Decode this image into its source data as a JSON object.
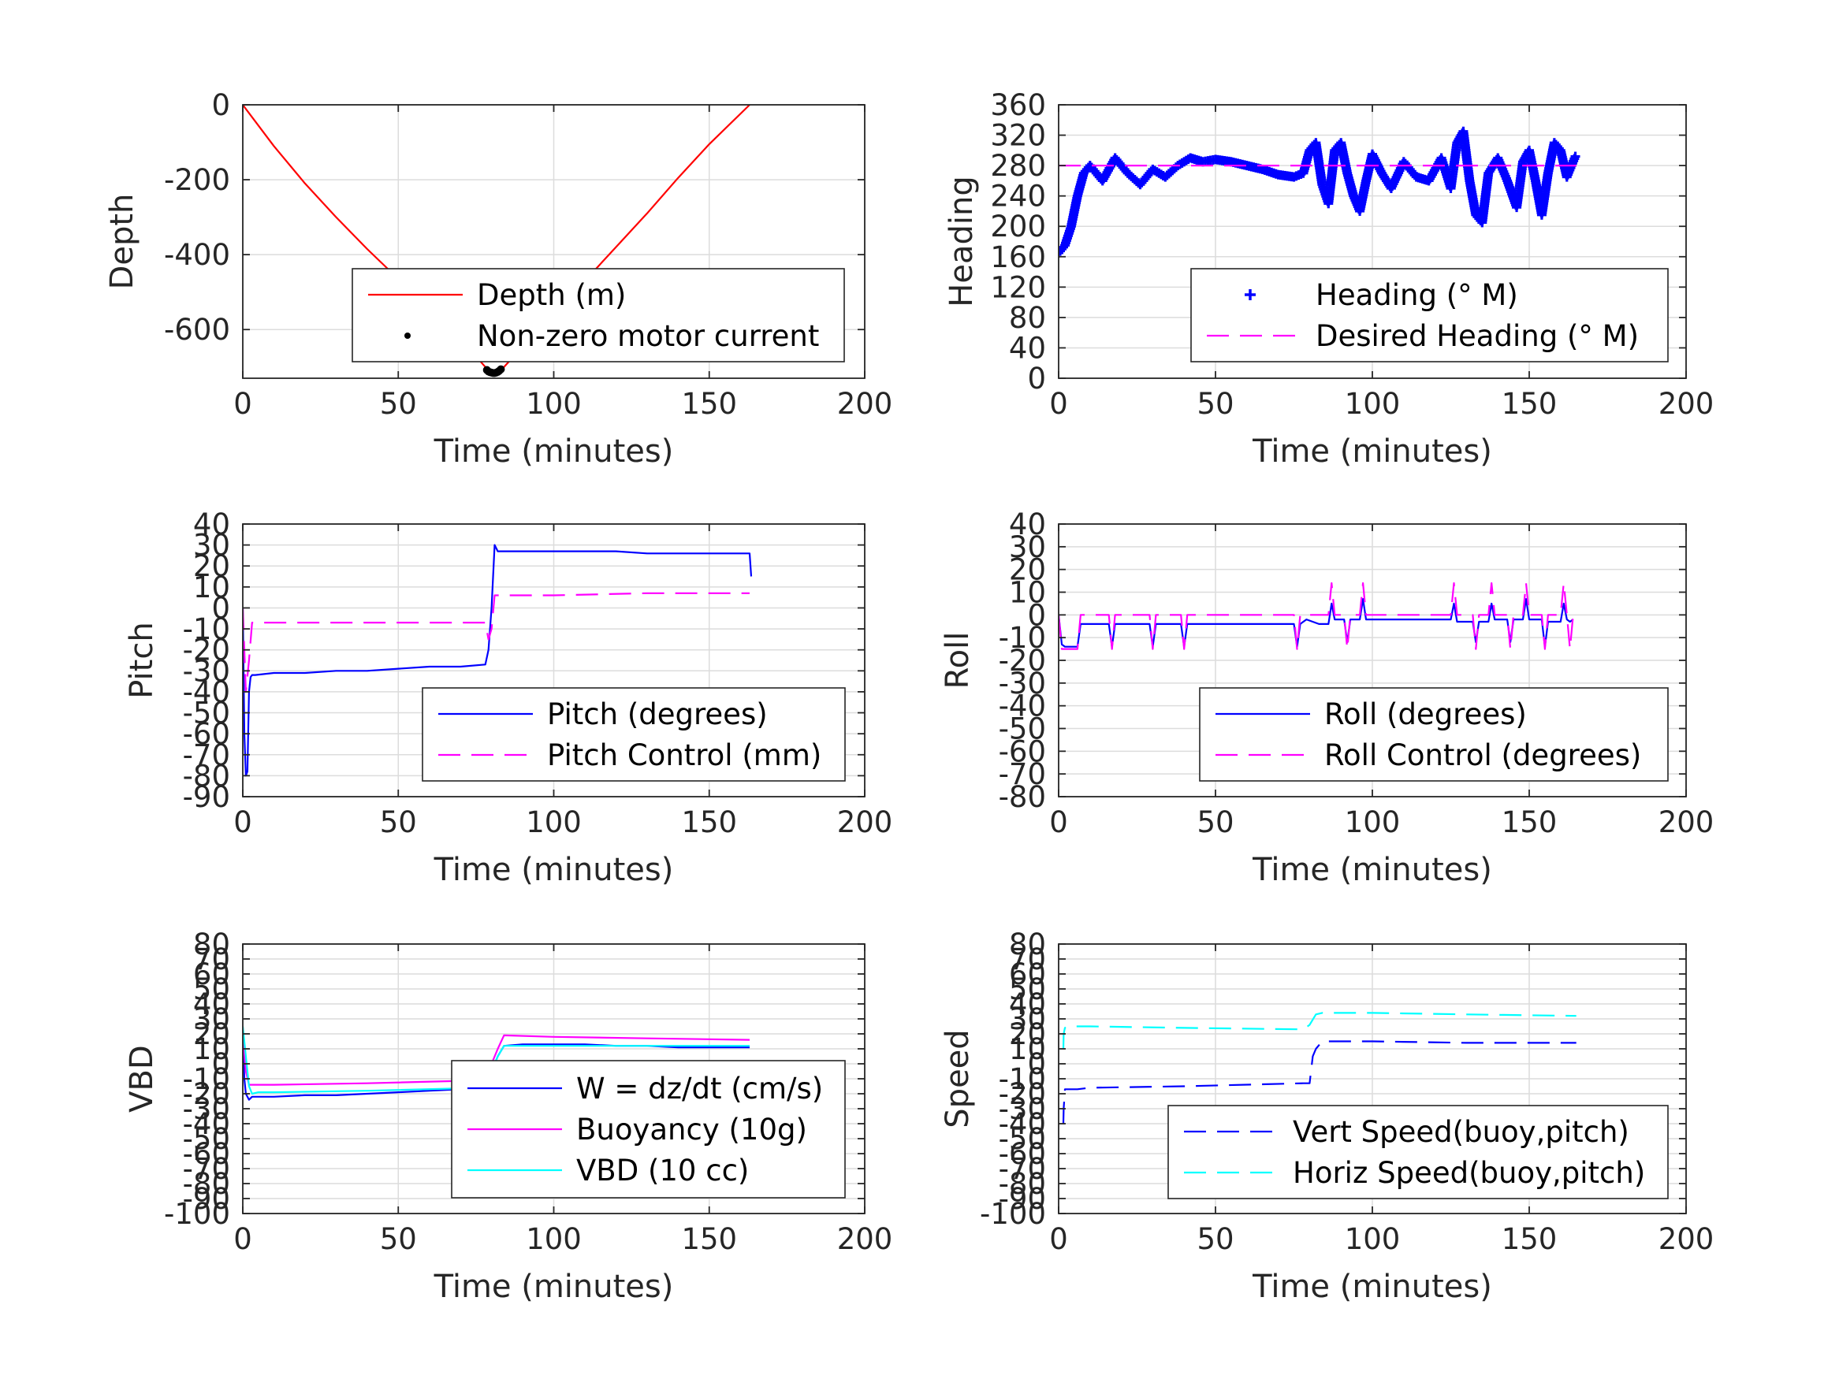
{
  "chart_data": [
    {
      "id": "depth",
      "type": "line",
      "xlabel": "Time (minutes)",
      "ylabel": "Depth",
      "xlim": [
        0,
        200
      ],
      "ylim": [
        -730,
        0
      ],
      "xticks": [
        0,
        50,
        100,
        150,
        200
      ],
      "yticks": [
        0,
        -200,
        -400,
        -600
      ],
      "legend": "bottom-right",
      "grid": true,
      "series": [
        {
          "name": "Depth (m)",
          "style": "solid",
          "color": "#ff0000",
          "x": [
            0,
            10,
            20,
            30,
            40,
            50,
            60,
            70,
            78,
            80,
            82,
            84,
            90,
            100,
            110,
            120,
            130,
            140,
            150,
            163
          ],
          "y": [
            0,
            -110,
            -210,
            -300,
            -385,
            -465,
            -545,
            -625,
            -700,
            -715,
            -715,
            -700,
            -645,
            -560,
            -470,
            -380,
            -290,
            -195,
            -105,
            0
          ]
        },
        {
          "name": "Non-zero motor current",
          "style": "marker",
          "color": "#000000",
          "x": [
            78.5,
            79,
            79.5,
            80,
            80.5,
            81,
            81.5,
            82,
            82.5,
            83
          ],
          "y": [
            -708,
            -712,
            -714,
            -715,
            -716,
            -716,
            -715,
            -713,
            -710,
            -706
          ]
        }
      ]
    },
    {
      "id": "heading",
      "type": "line",
      "xlabel": "Time (minutes)",
      "ylabel": "Heading",
      "xlim": [
        0,
        200
      ],
      "ylim": [
        0,
        360
      ],
      "xticks": [
        0,
        50,
        100,
        150,
        200
      ],
      "yticks": [
        0,
        40,
        80,
        120,
        160,
        200,
        240,
        280,
        320,
        360
      ],
      "legend": "bottom-right",
      "grid": true,
      "series": [
        {
          "name": "Heading (° M)",
          "style": "plus",
          "color": "#0000ff",
          "x": [
            0,
            2,
            4,
            6,
            8,
            10,
            14,
            18,
            22,
            26,
            30,
            34,
            38,
            42,
            46,
            50,
            55,
            60,
            65,
            70,
            75,
            78,
            80,
            82,
            84,
            86,
            88,
            90,
            92,
            94,
            96,
            98,
            100,
            103,
            106,
            110,
            114,
            118,
            122,
            125,
            127,
            129,
            131,
            133,
            135,
            137,
            140,
            143,
            146,
            148,
            150,
            152,
            154,
            156,
            158,
            160,
            162,
            165
          ],
          "y": [
            165,
            175,
            200,
            240,
            270,
            280,
            260,
            290,
            270,
            255,
            275,
            265,
            280,
            290,
            285,
            288,
            285,
            280,
            275,
            268,
            265,
            270,
            300,
            310,
            255,
            230,
            300,
            310,
            270,
            240,
            220,
            260,
            295,
            270,
            250,
            285,
            265,
            260,
            290,
            250,
            310,
            325,
            260,
            215,
            205,
            270,
            290,
            260,
            225,
            285,
            300,
            260,
            215,
            270,
            310,
            300,
            265,
            295
          ]
        },
        {
          "name": "Desired Heading (° M)",
          "style": "dashed",
          "color": "#ff00ff",
          "x": [
            0,
            165
          ],
          "y": [
            280,
            280
          ]
        }
      ]
    },
    {
      "id": "pitch",
      "type": "line",
      "xlabel": "Time (minutes)",
      "ylabel": "Pitch",
      "xlim": [
        0,
        200
      ],
      "ylim": [
        -90,
        40
      ],
      "xticks": [
        0,
        50,
        100,
        150,
        200
      ],
      "yticks": [
        40,
        30,
        20,
        10,
        0,
        -10,
        -20,
        -30,
        -40,
        -50,
        -60,
        -70,
        -80,
        -90
      ],
      "legend": "bottom-right",
      "grid": true,
      "series": [
        {
          "name": "Pitch (degrees)",
          "style": "solid",
          "color": "#0000ff",
          "x": [
            0,
            0.5,
            1,
            1.5,
            2,
            2.5,
            3,
            4,
            10,
            20,
            30,
            40,
            50,
            60,
            70,
            78,
            79,
            80,
            81,
            82,
            90,
            100,
            110,
            120,
            130,
            140,
            150,
            160,
            163,
            163.5
          ],
          "y": [
            0,
            -60,
            -80,
            -78,
            -40,
            -33,
            -32,
            -32,
            -31,
            -31,
            -30,
            -30,
            -29,
            -28,
            -28,
            -27,
            -20,
            0,
            30,
            27,
            27,
            27,
            27,
            27,
            26,
            26,
            26,
            26,
            26,
            15
          ]
        },
        {
          "name": "Pitch Control (mm)",
          "style": "dashed",
          "color": "#ff00ff",
          "x": [
            0,
            1,
            2,
            3,
            10,
            40,
            78,
            79,
            80,
            81,
            82,
            100,
            130,
            163
          ],
          "y": [
            0,
            -40,
            -25,
            -7,
            -7,
            -7,
            -7,
            -15,
            -10,
            6,
            6,
            6,
            7,
            7
          ]
        }
      ]
    },
    {
      "id": "roll",
      "type": "line",
      "xlabel": "Time (minutes)",
      "ylabel": "Roll",
      "xlim": [
        0,
        200
      ],
      "ylim": [
        -80,
        40
      ],
      "xticks": [
        0,
        50,
        100,
        150,
        200
      ],
      "yticks": [
        40,
        30,
        20,
        10,
        0,
        -10,
        -20,
        -30,
        -40,
        -50,
        -60,
        -70,
        -80
      ],
      "legend": "bottom-right",
      "grid": true,
      "series": [
        {
          "name": "Roll (degrees)",
          "style": "solid",
          "color": "#0000ff",
          "x": [
            0,
            1,
            2,
            6,
            7,
            8,
            16,
            17,
            18,
            29,
            30,
            31,
            39,
            40,
            41,
            75,
            76,
            77,
            79,
            83,
            86,
            87,
            88,
            91,
            92,
            93,
            96,
            97,
            98,
            125,
            126,
            127,
            132,
            133,
            134,
            137,
            138,
            139,
            143,
            144,
            145,
            148,
            149,
            150,
            154,
            155,
            156,
            160,
            161,
            162,
            163,
            164
          ],
          "y": [
            0,
            -13,
            -14,
            -14,
            -4,
            -4,
            -4,
            -14,
            -4,
            -4,
            -14,
            -4,
            -4,
            -14,
            -4,
            -4,
            -14,
            -4,
            -2,
            -4,
            -4,
            5,
            -2,
            -2,
            -12,
            -2,
            -2,
            7,
            -2,
            -2,
            5,
            -3,
            -3,
            -12,
            -3,
            -3,
            5,
            -2,
            -2,
            -12,
            -2,
            -2,
            7,
            -2,
            -2,
            -14,
            -3,
            -3,
            5,
            -2,
            -3,
            -2
          ]
        },
        {
          "name": "Roll Control (degrees)",
          "style": "dashed",
          "color": "#ff00ff",
          "x": [
            0,
            1,
            2,
            6,
            7,
            8,
            16,
            17,
            18,
            29,
            30,
            31,
            39,
            40,
            41,
            75,
            76,
            77,
            86,
            87,
            88,
            91,
            92,
            93,
            96,
            97,
            98,
            125,
            126,
            127,
            132,
            133,
            134,
            137,
            138,
            139,
            143,
            144,
            145,
            148,
            149,
            150,
            154,
            155,
            156,
            160,
            161,
            162,
            163,
            164
          ],
          "y": [
            0,
            -15,
            -15,
            -15,
            0,
            0,
            0,
            -15,
            0,
            0,
            -15,
            0,
            0,
            -15,
            0,
            0,
            -15,
            0,
            0,
            14,
            0,
            0,
            -15,
            0,
            0,
            14,
            0,
            0,
            14,
            0,
            0,
            -15,
            0,
            0,
            14,
            0,
            0,
            -15,
            0,
            0,
            14,
            0,
            0,
            -15,
            0,
            0,
            14,
            0,
            -15,
            0
          ]
        }
      ]
    },
    {
      "id": "vbd",
      "type": "line",
      "xlabel": "Time (minutes)",
      "ylabel": "VBD",
      "xlim": [
        0,
        200
      ],
      "ylim": [
        -100,
        80
      ],
      "xticks": [
        0,
        50,
        100,
        150,
        200
      ],
      "yticks": [
        80,
        70,
        60,
        50,
        40,
        30,
        20,
        10,
        0,
        -10,
        -20,
        -30,
        -40,
        -50,
        -60,
        -70,
        -80,
        -90,
        -100
      ],
      "ytick_labels": [
        "80",
        "70",
        "60",
        "50",
        "40",
        "30",
        "20",
        "10",
        "0",
        "-10",
        "-20",
        "-30",
        "-40",
        "-50",
        "-60",
        "-70",
        "-80",
        "-90",
        "-100"
      ],
      "legend": "bottom-right",
      "grid": true,
      "series": [
        {
          "name": "W = dz/dt (cm/s)",
          "style": "solid",
          "color": "#0000ff",
          "x": [
            0,
            0.5,
            1,
            2,
            3,
            5,
            10,
            20,
            30,
            40,
            50,
            60,
            70,
            78,
            80,
            82,
            84,
            90,
            100,
            110,
            120,
            130,
            140,
            150,
            160,
            163
          ],
          "y": [
            20,
            -10,
            -20,
            -24,
            -22,
            -22,
            -22,
            -21,
            -21,
            -20,
            -19,
            -18,
            -17,
            -16,
            -5,
            5,
            12,
            13,
            13,
            13,
            12,
            12,
            11,
            11,
            11,
            11
          ]
        },
        {
          "name": "Buoyancy (10g)",
          "style": "solid",
          "color": "#ff00ff",
          "x": [
            0,
            1,
            2,
            3,
            10,
            40,
            78,
            80,
            82,
            84,
            100,
            130,
            163
          ],
          "y": [
            20,
            -5,
            -14,
            -14,
            -14,
            -13,
            -11,
            0,
            10,
            19,
            18,
            17,
            16
          ]
        },
        {
          "name": "VBD (10 cc)",
          "style": "solid",
          "color": "#00ffff",
          "x": [
            0,
            1,
            2,
            3,
            5,
            10,
            40,
            78,
            80,
            82,
            84,
            100,
            130,
            163
          ],
          "y": [
            25,
            5,
            -15,
            -20,
            -19,
            -19,
            -18,
            -16,
            -5,
            5,
            12,
            12,
            12,
            12
          ]
        }
      ]
    },
    {
      "id": "speed",
      "type": "line",
      "xlabel": "Time (minutes)",
      "ylabel": "Speed",
      "xlim": [
        0,
        200
      ],
      "ylim": [
        -100,
        80
      ],
      "xticks": [
        0,
        50,
        100,
        150,
        200
      ],
      "yticks": [
        80,
        70,
        60,
        50,
        40,
        30,
        20,
        10,
        0,
        -10,
        -20,
        -30,
        -40,
        -50,
        -60,
        -70,
        -80,
        -90,
        -100
      ],
      "ytick_labels": [
        "80",
        "70",
        "60",
        "50",
        "40",
        "30",
        "20",
        "10",
        "0",
        "-10",
        "-20",
        "-30",
        "-40",
        "-50",
        "-60",
        "-70",
        "-80",
        "-90",
        "-100"
      ],
      "legend": "bottom-right",
      "grid": true,
      "series": [
        {
          "name": "Vert Speed(buoy,pitch)",
          "style": "dashed",
          "color": "#0000ff",
          "x": [
            1.5,
            1.6,
            2,
            6,
            10,
            40,
            78,
            80,
            81,
            82,
            84,
            100,
            130,
            165
          ],
          "y": [
            -40,
            -30,
            -17,
            -17,
            -16,
            -15,
            -13,
            -13,
            5,
            10,
            15,
            15,
            14,
            14
          ]
        },
        {
          "name": "Horiz Speed(buoy,pitch)",
          "style": "dashed",
          "color": "#00ffff",
          "x": [
            1.5,
            1.6,
            2,
            3,
            10,
            40,
            78,
            80,
            82,
            84,
            100,
            130,
            165
          ],
          "y": [
            10,
            20,
            24,
            25,
            25,
            24,
            23,
            26,
            33,
            34,
            34,
            33,
            32
          ]
        }
      ]
    }
  ]
}
